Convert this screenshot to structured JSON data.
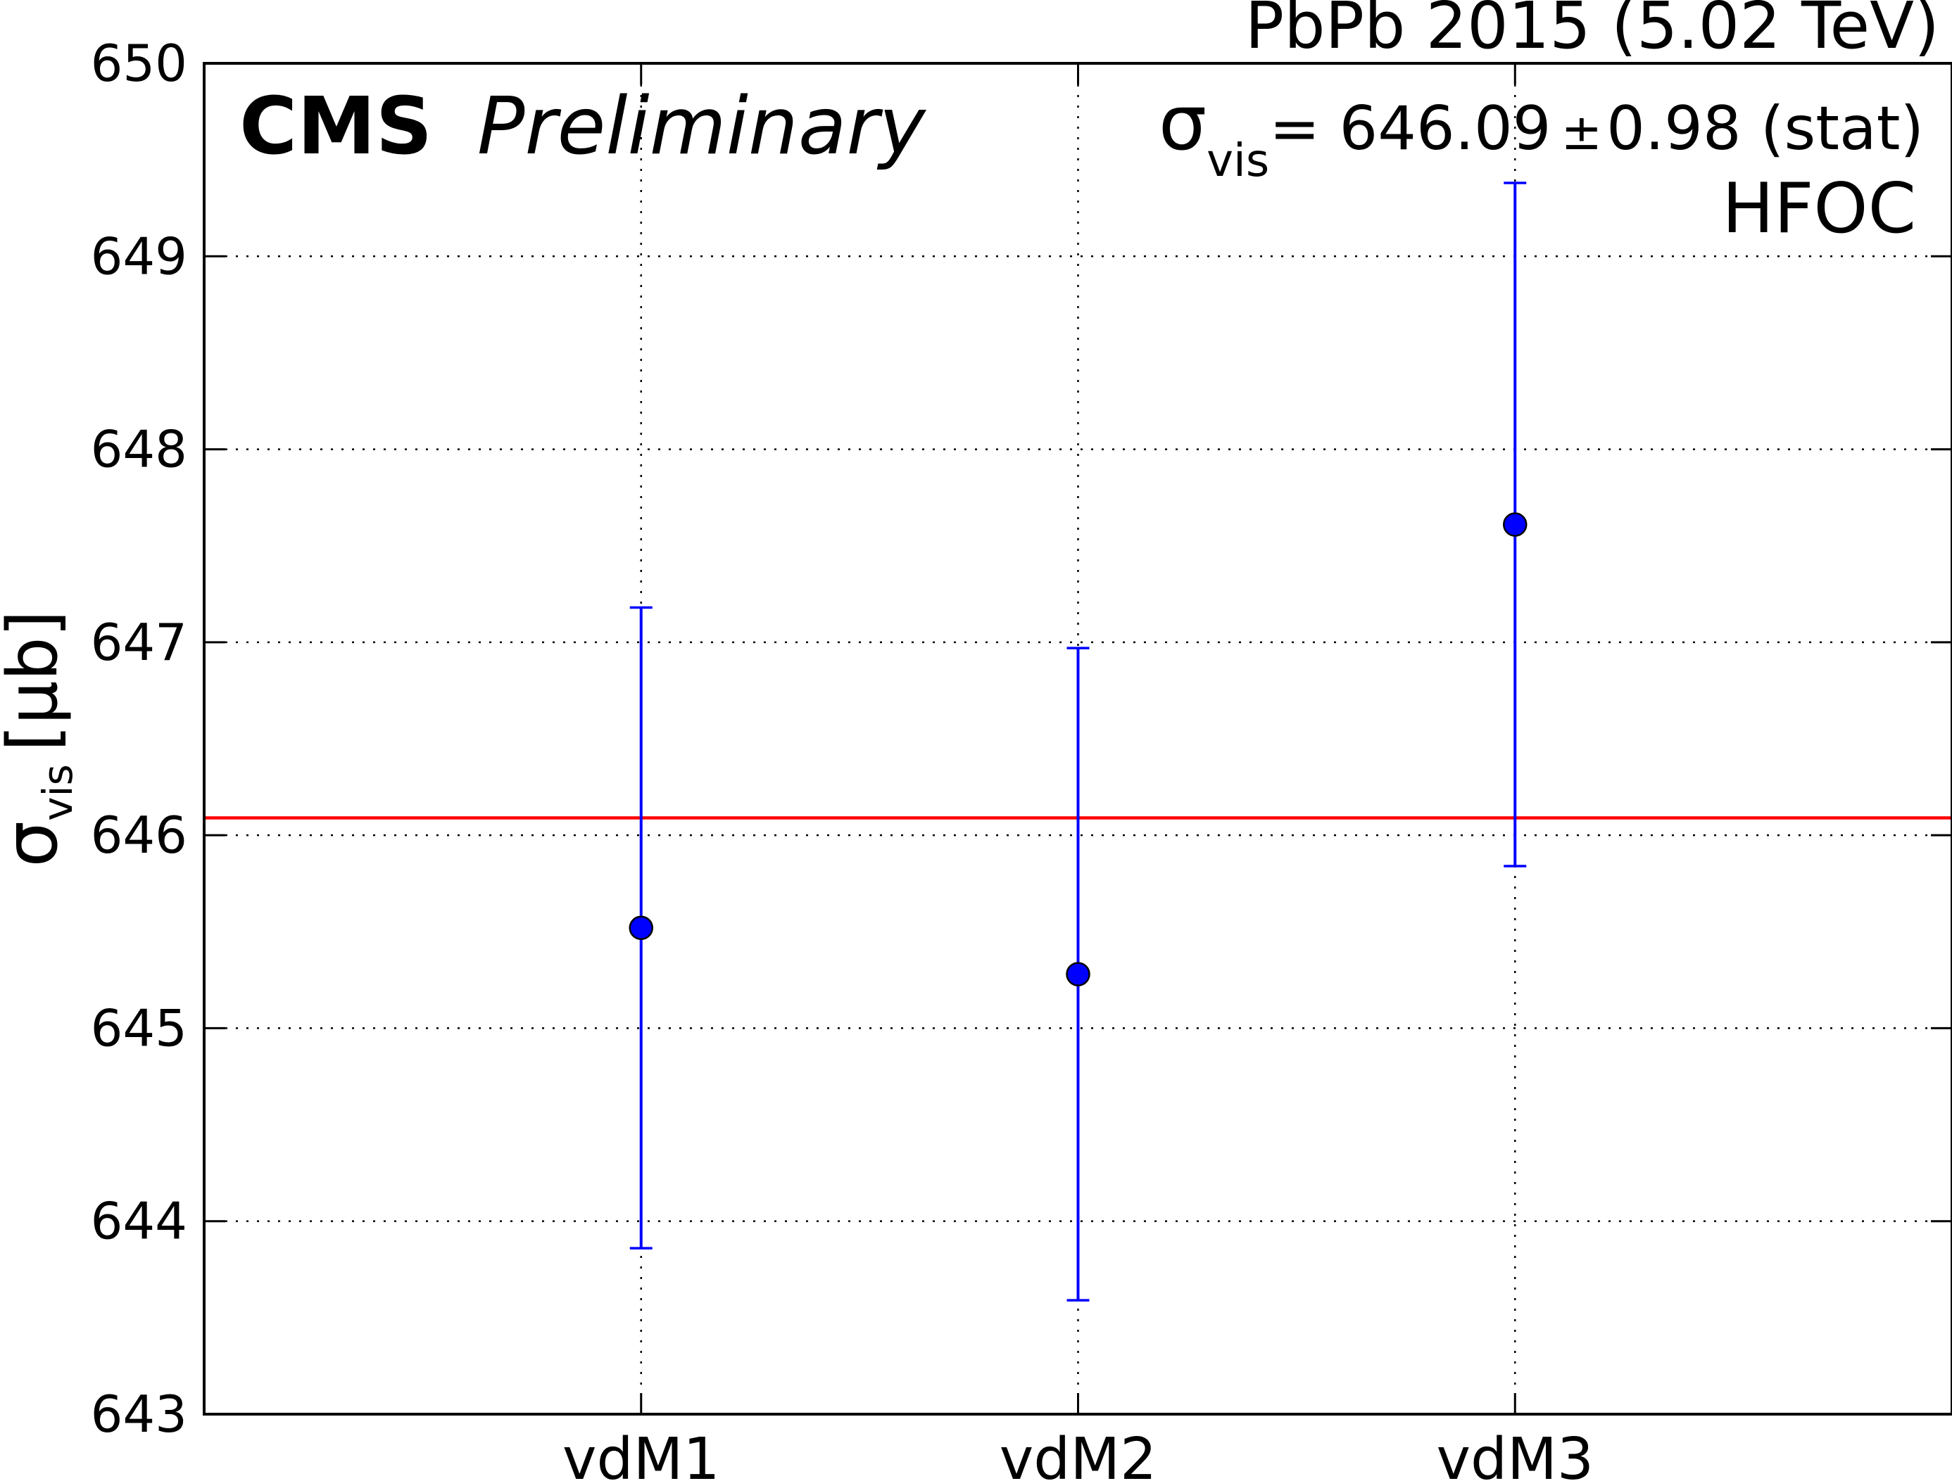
{
  "chart_data": {
    "type": "scatter",
    "title": "PbPb 2015 (5.02 TeV)",
    "experiment_label": "CMS",
    "status_label": "Preliminary",
    "ylabel": {
      "symbol": "σ",
      "subscript": "vis",
      "unit": "[μb]"
    },
    "categories": [
      "vdM1",
      "vdM2",
      "vdM3"
    ],
    "values": [
      645.52,
      645.28,
      647.61
    ],
    "errors": [
      1.66,
      1.69,
      1.77
    ],
    "ylim": [
      643,
      650
    ],
    "yticks": [
      "643",
      "644",
      "645",
      "646",
      "647",
      "648",
      "649",
      "650"
    ],
    "grid": true,
    "reference_line": {
      "value": 646.09,
      "symbol": "σ",
      "subscript": "vis",
      "text": "= 646.09",
      "pm": "±",
      "error_text": "0.98 (stat)"
    },
    "annotation": "HFOC",
    "colors": {
      "points": "#0000ff",
      "reference_line": "#ff0000",
      "grid": "#000000",
      "frame": "#000000"
    }
  }
}
